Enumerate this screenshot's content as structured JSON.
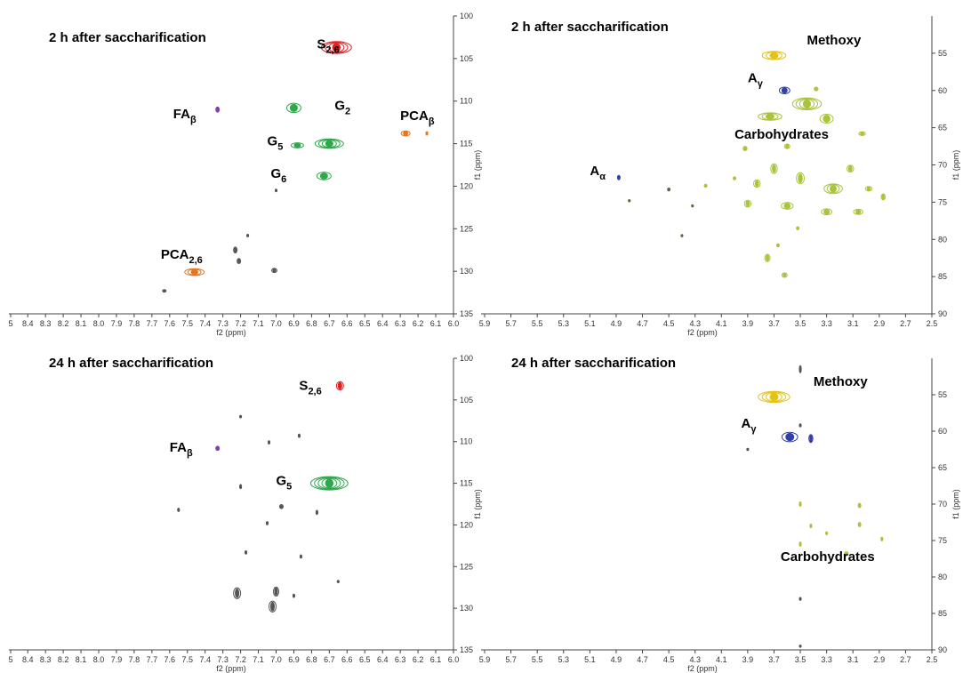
{
  "chart_data": [
    {
      "type": "heatmap",
      "title": "2 h after saccharification",
      "xlabel": "f2 (ppm)",
      "ylabel": "f1 (ppm)",
      "xlim": [
        5.0,
        6.0
      ],
      "ylim": [
        100,
        135
      ],
      "x_ticks": [
        "5",
        "8.4",
        "8.3",
        "8.2",
        "8.1",
        "8.0",
        "7.9",
        "7.8",
        "7.7",
        "7.6",
        "7.5",
        "7.4",
        "7.3",
        "7.2",
        "7.1",
        "7.0",
        "6.9",
        "6.8",
        "6.7",
        "6.6",
        "6.5",
        "6.4",
        "6.3",
        "6.2",
        "6.1",
        "6.0"
      ],
      "y_ticks": [
        "100",
        "105",
        "110",
        "115",
        "120",
        "125",
        "130",
        "135"
      ],
      "annotations": [
        {
          "main": "S",
          "sub": "2,6",
          "x": 6.77,
          "y": 103.8
        },
        {
          "main": "G",
          "sub": "2",
          "x": 6.67,
          "y": 111.0
        },
        {
          "main": "FA",
          "sub": "β",
          "x": 7.58,
          "y": 112.0
        },
        {
          "main": "PCA",
          "sub": "β",
          "x": 6.3,
          "y": 112.2
        },
        {
          "main": "G",
          "sub": "5",
          "x": 7.05,
          "y": 115.2
        },
        {
          "main": "G",
          "sub": "6",
          "x": 7.03,
          "y": 119.0
        },
        {
          "main": "PCA",
          "sub": "2,6",
          "x": 7.65,
          "y": 128.5
        }
      ],
      "peaks": [
        {
          "x": 6.66,
          "y": 103.7,
          "w": 0.17,
          "h": 1.4,
          "color": "#e02020",
          "group": "S2,6"
        },
        {
          "x": 7.33,
          "y": 111.0,
          "w": 0.02,
          "h": 0.6,
          "color": "#7b3fa8",
          "group": "FAβ"
        },
        {
          "x": 6.9,
          "y": 110.8,
          "w": 0.08,
          "h": 1.1,
          "color": "#2ea84a",
          "group": "G2"
        },
        {
          "x": 6.88,
          "y": 115.2,
          "w": 0.07,
          "h": 0.6,
          "color": "#2ea84a",
          "group": "G5"
        },
        {
          "x": 6.7,
          "y": 115.0,
          "w": 0.16,
          "h": 1.1,
          "color": "#2ea84a",
          "group": "G5"
        },
        {
          "x": 6.73,
          "y": 118.8,
          "w": 0.08,
          "h": 0.9,
          "color": "#2ea84a",
          "group": "G6"
        },
        {
          "x": 6.27,
          "y": 113.8,
          "w": 0.05,
          "h": 0.6,
          "color": "#e8741e",
          "group": "PCAβ"
        },
        {
          "x": 6.15,
          "y": 113.8,
          "w": 0.01,
          "h": 0.4,
          "color": "#e8741e",
          "group": "PCAβ"
        },
        {
          "x": 7.46,
          "y": 130.1,
          "w": 0.11,
          "h": 0.8,
          "color": "#e8741e",
          "group": "PCA2,6"
        },
        {
          "x": 7.23,
          "y": 127.5,
          "w": 0.02,
          "h": 0.7,
          "color": "#555555",
          "group": "other"
        },
        {
          "x": 7.21,
          "y": 128.8,
          "w": 0.02,
          "h": 0.6,
          "color": "#555555",
          "group": "other"
        },
        {
          "x": 7.01,
          "y": 129.9,
          "w": 0.03,
          "h": 0.5,
          "color": "#555555",
          "group": "other"
        },
        {
          "x": 7.16,
          "y": 125.8,
          "w": 0.01,
          "h": 0.3,
          "color": "#555555",
          "group": "other"
        },
        {
          "x": 7.0,
          "y": 120.5,
          "w": 0.01,
          "h": 0.3,
          "color": "#555555",
          "group": "other"
        },
        {
          "x": 7.63,
          "y": 132.3,
          "w": 0.02,
          "h": 0.3,
          "color": "#555555",
          "group": "other"
        }
      ]
    },
    {
      "type": "heatmap",
      "title": "2 h after saccharification",
      "xlabel": "f2 (ppm)",
      "ylabel": "f1 (ppm)",
      "xlim": [
        6.0,
        2.5
      ],
      "ylim": [
        50,
        90
      ],
      "x_ticks": [
        "5.9",
        "5.7",
        "5.5",
        "5.3",
        "5.1",
        "4.9",
        "4.7",
        "4.5",
        "4.3",
        "4.1",
        "3.9",
        "3.7",
        "3.5",
        "3.3",
        "3.1",
        "2.9",
        "2.7",
        "2.5"
      ],
      "y_ticks": [
        "55",
        "60",
        "65",
        "70",
        "75",
        "80",
        "85",
        "90"
      ],
      "annotations": [
        {
          "main": "Methoxy",
          "sub": "",
          "x": 3.45,
          "y": 53.8
        },
        {
          "main": "A",
          "sub": "γ",
          "x": 3.9,
          "y": 58.9
        },
        {
          "main": "Carbohydrates",
          "sub": "",
          "x": 4.0,
          "y": 66.5
        },
        {
          "main": "A",
          "sub": "α",
          "x": 5.1,
          "y": 71.4
        }
      ],
      "peaks": [
        {
          "x": 3.7,
          "y": 55.3,
          "w": 0.18,
          "h": 1.1,
          "color": "#e3c21a",
          "group": "Methoxy"
        },
        {
          "x": 3.62,
          "y": 60.0,
          "w": 0.08,
          "h": 0.9,
          "color": "#3040a8",
          "group": "Aγ"
        },
        {
          "x": 4.88,
          "y": 71.7,
          "w": 0.02,
          "h": 0.6,
          "color": "#3040a8",
          "group": "Aα"
        },
        {
          "x": 3.45,
          "y": 61.8,
          "w": 0.22,
          "h": 1.6,
          "color": "#a7c43a",
          "group": "Carbohydrates"
        },
        {
          "x": 3.73,
          "y": 63.5,
          "w": 0.18,
          "h": 1.0,
          "color": "#a7c43a",
          "group": "Carbohydrates"
        },
        {
          "x": 3.3,
          "y": 63.8,
          "w": 0.1,
          "h": 1.2,
          "color": "#a7c43a",
          "group": "Carbohydrates"
        },
        {
          "x": 3.38,
          "y": 59.8,
          "w": 0.03,
          "h": 0.5,
          "color": "#a7c43a",
          "group": "Carbohydrates"
        },
        {
          "x": 3.03,
          "y": 65.8,
          "w": 0.05,
          "h": 0.5,
          "color": "#a7c43a",
          "group": "Carbohydrates"
        },
        {
          "x": 3.7,
          "y": 70.5,
          "w": 0.05,
          "h": 1.3,
          "color": "#a7c43a",
          "group": "Carbohydrates"
        },
        {
          "x": 3.5,
          "y": 71.8,
          "w": 0.06,
          "h": 1.5,
          "color": "#a7c43a",
          "group": "Carbohydrates"
        },
        {
          "x": 3.25,
          "y": 73.2,
          "w": 0.14,
          "h": 1.3,
          "color": "#a7c43a",
          "group": "Carbohydrates"
        },
        {
          "x": 3.12,
          "y": 70.5,
          "w": 0.05,
          "h": 0.9,
          "color": "#a7c43a",
          "group": "Carbohydrates"
        },
        {
          "x": 2.98,
          "y": 73.2,
          "w": 0.05,
          "h": 0.6,
          "color": "#a7c43a",
          "group": "Carbohydrates"
        },
        {
          "x": 3.83,
          "y": 72.5,
          "w": 0.05,
          "h": 1.0,
          "color": "#a7c43a",
          "group": "Carbohydrates"
        },
        {
          "x": 3.9,
          "y": 75.2,
          "w": 0.05,
          "h": 0.9,
          "color": "#a7c43a",
          "group": "Carbohydrates"
        },
        {
          "x": 3.6,
          "y": 75.5,
          "w": 0.09,
          "h": 0.9,
          "color": "#a7c43a",
          "group": "Carbohydrates"
        },
        {
          "x": 3.3,
          "y": 76.3,
          "w": 0.08,
          "h": 0.8,
          "color": "#a7c43a",
          "group": "Carbohydrates"
        },
        {
          "x": 3.06,
          "y": 76.3,
          "w": 0.07,
          "h": 0.7,
          "color": "#a7c43a",
          "group": "Carbohydrates"
        },
        {
          "x": 2.87,
          "y": 74.3,
          "w": 0.03,
          "h": 0.8,
          "color": "#a7c43a",
          "group": "Carbohydrates"
        },
        {
          "x": 3.92,
          "y": 67.8,
          "w": 0.03,
          "h": 0.6,
          "color": "#a7c43a",
          "group": "Carbohydrates"
        },
        {
          "x": 3.6,
          "y": 67.5,
          "w": 0.04,
          "h": 0.6,
          "color": "#a7c43a",
          "group": "Carbohydrates"
        },
        {
          "x": 3.75,
          "y": 82.5,
          "w": 0.04,
          "h": 1.0,
          "color": "#a7c43a",
          "group": "Carbohydrates"
        },
        {
          "x": 3.62,
          "y": 84.8,
          "w": 0.04,
          "h": 0.6,
          "color": "#a7c43a",
          "group": "Carbohydrates"
        },
        {
          "x": 3.67,
          "y": 80.8,
          "w": 0.02,
          "h": 0.4,
          "color": "#a7c43a",
          "group": "Carbohydrates"
        },
        {
          "x": 4.0,
          "y": 71.8,
          "w": 0.02,
          "h": 0.4,
          "color": "#a7c43a",
          "group": "Carbohydrates"
        },
        {
          "x": 4.22,
          "y": 72.8,
          "w": 0.02,
          "h": 0.4,
          "color": "#a7c43a",
          "group": "Carbohydrates"
        },
        {
          "x": 3.52,
          "y": 78.5,
          "w": 0.02,
          "h": 0.4,
          "color": "#a7c43a",
          "group": "Carbohydrates"
        },
        {
          "x": 4.5,
          "y": 73.3,
          "w": 0.02,
          "h": 0.4,
          "color": "#6b6040",
          "group": "other"
        },
        {
          "x": 4.8,
          "y": 74.8,
          "w": 0.01,
          "h": 0.3,
          "color": "#6b6040",
          "group": "other"
        },
        {
          "x": 4.32,
          "y": 75.5,
          "w": 0.01,
          "h": 0.3,
          "color": "#6b6040",
          "group": "other"
        },
        {
          "x": 4.4,
          "y": 79.5,
          "w": 0.01,
          "h": 0.3,
          "color": "#6b6040",
          "group": "other"
        }
      ]
    },
    {
      "type": "heatmap",
      "title": "24 h after saccharification",
      "xlabel": "f2 (ppm)",
      "ylabel": "f1 (ppm)",
      "xlim": [
        5.0,
        6.0
      ],
      "ylim": [
        100,
        135
      ],
      "x_ticks": [
        "5",
        "8.4",
        "8.3",
        "8.2",
        "8.1",
        "8.0",
        "7.9",
        "7.8",
        "7.7",
        "7.6",
        "7.5",
        "7.4",
        "7.3",
        "7.2",
        "7.1",
        "7.0",
        "6.9",
        "6.8",
        "6.7",
        "6.6",
        "6.5",
        "6.4",
        "6.3",
        "6.2",
        "6.1",
        "6.0"
      ],
      "y_ticks": [
        "100",
        "105",
        "110",
        "115",
        "120",
        "125",
        "130",
        "135"
      ],
      "annotations": [
        {
          "main": "S",
          "sub": "2,6",
          "x": 6.87,
          "y": 103.8
        },
        {
          "main": "FA",
          "sub": "β",
          "x": 7.6,
          "y": 111.2
        },
        {
          "main": "G",
          "sub": "5",
          "x": 7.0,
          "y": 115.2
        }
      ],
      "peaks": [
        {
          "x": 6.64,
          "y": 103.3,
          "w": 0.04,
          "h": 1.0,
          "color": "#e02020",
          "group": "S2,6"
        },
        {
          "x": 7.33,
          "y": 110.8,
          "w": 0.02,
          "h": 0.5,
          "color": "#7b3fa8",
          "group": "FAβ"
        },
        {
          "x": 6.7,
          "y": 115.0,
          "w": 0.21,
          "h": 1.6,
          "color": "#2ea84a",
          "group": "G5"
        },
        {
          "x": 7.0,
          "y": 128.0,
          "w": 0.03,
          "h": 1.1,
          "color": "#555555",
          "group": "other"
        },
        {
          "x": 7.22,
          "y": 128.2,
          "w": 0.04,
          "h": 1.3,
          "color": "#555555",
          "group": "other"
        },
        {
          "x": 7.02,
          "y": 129.8,
          "w": 0.04,
          "h": 1.3,
          "color": "#555555",
          "group": "other"
        },
        {
          "x": 7.2,
          "y": 115.4,
          "w": 0.01,
          "h": 0.5,
          "color": "#555555",
          "group": "other"
        },
        {
          "x": 7.55,
          "y": 118.2,
          "w": 0.01,
          "h": 0.4,
          "color": "#555555",
          "group": "other"
        },
        {
          "x": 6.97,
          "y": 117.8,
          "w": 0.02,
          "h": 0.5,
          "color": "#555555",
          "group": "other"
        },
        {
          "x": 6.77,
          "y": 118.5,
          "w": 0.01,
          "h": 0.5,
          "color": "#555555",
          "group": "other"
        },
        {
          "x": 7.17,
          "y": 123.3,
          "w": 0.01,
          "h": 0.4,
          "color": "#555555",
          "group": "other"
        },
        {
          "x": 6.86,
          "y": 123.8,
          "w": 0.01,
          "h": 0.4,
          "color": "#555555",
          "group": "other"
        },
        {
          "x": 6.87,
          "y": 109.3,
          "w": 0.01,
          "h": 0.4,
          "color": "#555555",
          "group": "other"
        },
        {
          "x": 7.04,
          "y": 110.1,
          "w": 0.01,
          "h": 0.4,
          "color": "#555555",
          "group": "other"
        },
        {
          "x": 7.05,
          "y": 119.8,
          "w": 0.01,
          "h": 0.4,
          "color": "#555555",
          "group": "other"
        },
        {
          "x": 7.2,
          "y": 107.0,
          "w": 0.01,
          "h": 0.3,
          "color": "#555555",
          "group": "other"
        },
        {
          "x": 6.65,
          "y": 126.8,
          "w": 0.01,
          "h": 0.3,
          "color": "#555555",
          "group": "other"
        },
        {
          "x": 6.9,
          "y": 128.5,
          "w": 0.01,
          "h": 0.4,
          "color": "#555555",
          "group": "other"
        }
      ]
    },
    {
      "type": "heatmap",
      "title": "24 h after saccharification",
      "xlabel": "f2 (ppm)",
      "ylabel": "f1 (ppm)",
      "xlim": [
        6.0,
        2.5
      ],
      "ylim": [
        50,
        90
      ],
      "x_ticks": [
        "5.9",
        "5.7",
        "5.5",
        "5.3",
        "5.1",
        "4.9",
        "4.7",
        "4.5",
        "4.3",
        "4.1",
        "3.9",
        "3.7",
        "3.5",
        "3.3",
        "3.1",
        "2.9",
        "2.7",
        "2.5"
      ],
      "y_ticks": [
        "55",
        "60",
        "65",
        "70",
        "75",
        "80",
        "85",
        "90"
      ],
      "annotations": [
        {
          "main": "Methoxy",
          "sub": "",
          "x": 3.4,
          "y": 53.8
        },
        {
          "main": "A",
          "sub": "γ",
          "x": 3.95,
          "y": 59.5
        },
        {
          "main": "Carbohydrates",
          "sub": "",
          "x": 3.65,
          "y": 77.8
        }
      ],
      "peaks": [
        {
          "x": 3.7,
          "y": 55.3,
          "w": 0.24,
          "h": 1.5,
          "color": "#e3c21a",
          "group": "Methoxy"
        },
        {
          "x": 3.58,
          "y": 60.8,
          "w": 0.12,
          "h": 1.3,
          "color": "#3040a8",
          "group": "Aγ"
        },
        {
          "x": 3.42,
          "y": 61.0,
          "w": 0.03,
          "h": 1.1,
          "color": "#3040a8",
          "group": "Aγ"
        },
        {
          "x": 3.5,
          "y": 70.0,
          "w": 0.01,
          "h": 0.6,
          "color": "#a7c43a",
          "group": "Carbohydrates"
        },
        {
          "x": 3.5,
          "y": 75.5,
          "w": 0.01,
          "h": 0.6,
          "color": "#a7c43a",
          "group": "Carbohydrates"
        },
        {
          "x": 3.42,
          "y": 73.0,
          "w": 0.01,
          "h": 0.5,
          "color": "#a7c43a",
          "group": "Carbohydrates"
        },
        {
          "x": 3.3,
          "y": 74.0,
          "w": 0.01,
          "h": 0.4,
          "color": "#a7c43a",
          "group": "Carbohydrates"
        },
        {
          "x": 3.05,
          "y": 70.2,
          "w": 0.02,
          "h": 0.6,
          "color": "#a7c43a",
          "group": "Carbohydrates"
        },
        {
          "x": 3.05,
          "y": 72.8,
          "w": 0.02,
          "h": 0.6,
          "color": "#a7c43a",
          "group": "Carbohydrates"
        },
        {
          "x": 3.15,
          "y": 76.8,
          "w": 0.03,
          "h": 0.5,
          "color": "#a7c43a",
          "group": "Carbohydrates"
        },
        {
          "x": 2.88,
          "y": 74.8,
          "w": 0.01,
          "h": 0.5,
          "color": "#a7c43a",
          "group": "Carbohydrates"
        },
        {
          "x": 3.9,
          "y": 62.5,
          "w": 0.01,
          "h": 0.3,
          "color": "#555555",
          "group": "other"
        },
        {
          "x": 3.5,
          "y": 59.2,
          "w": 0.01,
          "h": 0.4,
          "color": "#555555",
          "group": "other"
        },
        {
          "x": 3.5,
          "y": 51.5,
          "w": 0.005,
          "h": 1.0,
          "color": "#555555",
          "group": "other"
        },
        {
          "x": 3.5,
          "y": 83.0,
          "w": 0.005,
          "h": 0.4,
          "color": "#555555",
          "group": "other"
        },
        {
          "x": 3.5,
          "y": 89.5,
          "w": 0.005,
          "h": 0.3,
          "color": "#555555",
          "group": "other"
        }
      ]
    }
  ]
}
